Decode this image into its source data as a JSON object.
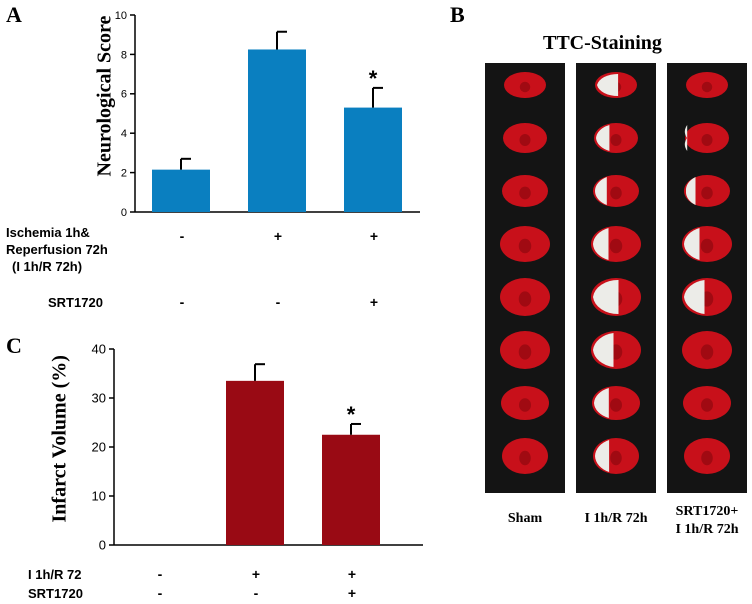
{
  "panel_a": {
    "label": "A",
    "chart_data": {
      "type": "bar",
      "ylabel": "Neurological Score",
      "ylim": [
        0,
        10
      ],
      "yticks": [
        "0",
        "2",
        "4",
        "6",
        "8",
        "10"
      ],
      "color": "#0a7fc0",
      "groups": [
        {
          "value": 2.15,
          "error": 0.55,
          "significance": ""
        },
        {
          "value": 8.25,
          "error": 0.9,
          "significance": ""
        },
        {
          "value": 5.3,
          "error": 1.0,
          "significance": "*"
        }
      ]
    },
    "conditions": [
      {
        "label_lines": [
          "Ischemia 1h&",
          "Reperfusion 72h",
          "(I 1h/R 72h)"
        ],
        "signs": [
          "-",
          "+",
          "+"
        ]
      },
      {
        "label_lines": [
          "SRT1720"
        ],
        "signs": [
          "-",
          "-",
          "+"
        ]
      }
    ]
  },
  "panel_b": {
    "label": "B",
    "title": "TTC-Staining",
    "columns": [
      {
        "label_lines": [
          "Sham"
        ]
      },
      {
        "label_lines": [
          "I 1h/R 72h"
        ]
      },
      {
        "label_lines": [
          "SRT1720+",
          "I 1h/R 72h"
        ]
      }
    ],
    "colors": {
      "tissue": "#c8101a",
      "infarct": "#ecece8",
      "background": "#141414"
    }
  },
  "panel_c": {
    "label": "C",
    "chart_data": {
      "type": "bar",
      "ylabel": "Infarct Volume (%)",
      "ylim": [
        0,
        40
      ],
      "yticks": [
        "0",
        "10",
        "20",
        "30",
        "40"
      ],
      "color": "#990a14",
      "groups": [
        {
          "value": 0,
          "error": 0,
          "significance": ""
        },
        {
          "value": 33.5,
          "error": 3.4,
          "significance": ""
        },
        {
          "value": 22.5,
          "error": 2.2,
          "significance": "*"
        }
      ]
    },
    "conditions": [
      {
        "label_lines": [
          "I 1h/R 72"
        ],
        "signs": [
          "-",
          "+",
          "+"
        ]
      },
      {
        "label_lines": [
          "SRT1720"
        ],
        "signs": [
          "-",
          "-",
          "+"
        ]
      }
    ]
  }
}
